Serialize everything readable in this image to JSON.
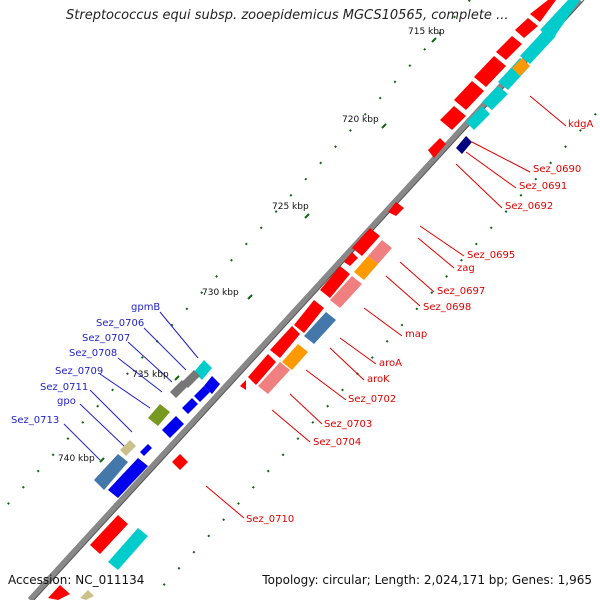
{
  "title": "Streptococcus equi subsp. zooepidemicus MGCS10565, complete ...",
  "footer": {
    "accession": "Accession: NC_011134",
    "topology": "Topology: circular; Length: 2,024,171 bp; Genes: 1,965"
  },
  "ticks": [
    "715 kbp",
    "720 kbp",
    "725 kbp",
    "730 kbp",
    "735 kbp",
    "740 kbp"
  ],
  "genes_right": [
    "kdgA",
    "Sez_0690",
    "Sez_0691",
    "Sez_0692",
    "Sez_0695",
    "zag",
    "Sez_0697",
    "Sez_0698",
    "map",
    "aroA",
    "aroK",
    "Sez_0702",
    "Sez_0703",
    "Sez_0704",
    "Sez_0710"
  ],
  "genes_left": [
    "gpmB",
    "Sez_0706",
    "Sez_0707",
    "Sez_0708",
    "Sez_0709",
    "Sez_0711",
    "gpo",
    "Sez_0713"
  ],
  "colors": {
    "forward_cds": "#ff0000",
    "rna": "#00cccc",
    "highlight_orange": "#ff9900",
    "highlight_pink": "#f08080",
    "highlight_blue": "#4477aa",
    "reverse_cds": "#0000ee",
    "other_olive": "#779922",
    "other_gray": "#777777",
    "other_khaki": "#ccc08a",
    "navy": "#000080",
    "right_label": "#e00000",
    "left_label": "#2222cc",
    "backbone": "#888888",
    "tick": "#116611"
  }
}
